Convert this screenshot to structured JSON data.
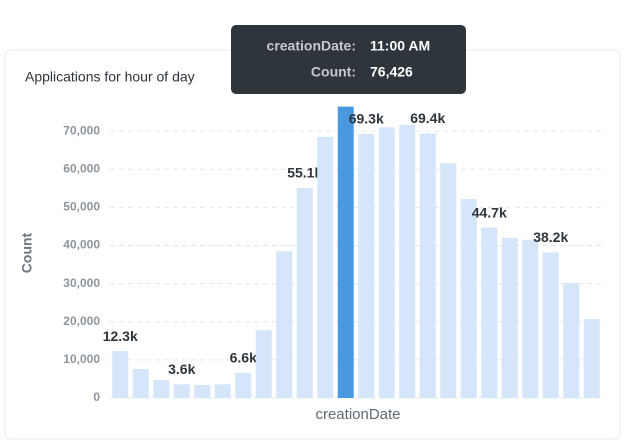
{
  "chart_data": {
    "type": "bar",
    "title": "Applications for hour of day",
    "x_label": "creationDate",
    "y_label": "Count",
    "values": [
      12300,
      7600,
      4700,
      3600,
      3400,
      3600,
      6600,
      17800,
      38500,
      55100,
      68500,
      76426,
      69300,
      71000,
      71600,
      69400,
      61600,
      52200,
      44700,
      42000,
      41500,
      38200,
      30200,
      20700
    ],
    "value_labels": [
      "12.3k",
      null,
      null,
      "3.6k",
      null,
      null,
      "6.6k",
      null,
      null,
      "55.1k",
      null,
      null,
      "69.3k",
      null,
      null,
      "69.4k",
      null,
      null,
      "44.7k",
      null,
      null,
      "38.2k",
      null,
      null
    ],
    "colors": [
      "#d5e6fa",
      "#d5e6fa",
      "#d5e6fa",
      "#d5e6fa",
      "#d5e6fa",
      "#d5e6fa",
      "#d5e6fa",
      "#d5e6fa",
      "#d5e6fa",
      "#d5e6fa",
      "#d5e6fa",
      "#4a98e0",
      "#d5e6fa",
      "#d5e6fa",
      "#d5e6fa",
      "#d5e6fa",
      "#d5e6fa",
      "#d5e6fa",
      "#d5e6fa",
      "#d5e6fa",
      "#d5e6fa",
      "#d5e6fa",
      "#d5e6fa",
      "#d5e6fa"
    ],
    "ylim": [
      0,
      80000
    ],
    "yticks": [
      0,
      {
        "value": 10000,
        "label": "10,000"
      },
      {
        "value": 20000,
        "label": "20,000"
      },
      {
        "value": 30000,
        "label": "30,000"
      },
      {
        "value": 40000,
        "label": "40,000"
      },
      {
        "value": 50000,
        "label": "50,000"
      },
      {
        "value": 60000,
        "label": "60,000"
      },
      {
        "value": 70000,
        "label": "70,000"
      }
    ],
    "grid": true,
    "tooltip": {
      "x_name": "creationDate:",
      "x_value": "11:00 AM",
      "y_name": "Count:",
      "y_value": "76,426"
    }
  }
}
